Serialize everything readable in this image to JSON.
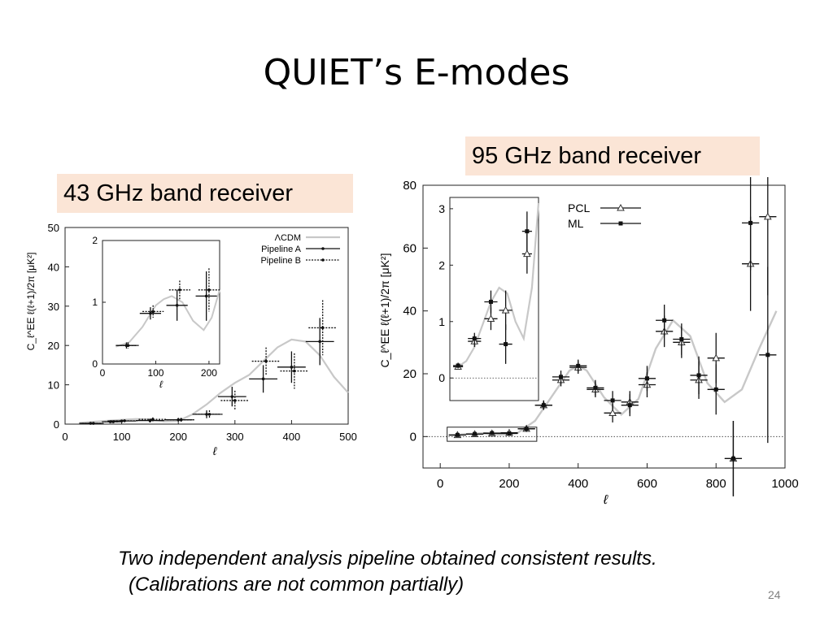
{
  "slide": {
    "title": "QUIET’s E-modes",
    "label_43": "43 GHz band receiver",
    "label_95": "95 GHz band receiver",
    "caption_line1": "Two independent analysis pipeline obtained consistent results.",
    "caption_line2": "(Calibrations are not common partially)",
    "page_number": "24"
  },
  "chart_data": [
    {
      "type": "scatter",
      "ylabel": "C_ℓ^EE ℓ(ℓ+1)/2π [μK²]",
      "xlabel": "ℓ",
      "xlim": [
        0,
        500
      ],
      "ylim": [
        0,
        50
      ],
      "xticks": [
        0,
        100,
        200,
        300,
        400,
        500
      ],
      "yticks": [
        0,
        10,
        20,
        30,
        40,
        50
      ],
      "legend_position": "top-right",
      "legend": [
        "ΛCDM",
        "Pipeline A",
        "Pipeline B"
      ],
      "theory": {
        "name": "ΛCDM",
        "color": "#c8c8c8",
        "x": [
          25,
          50,
          75,
          100,
          125,
          150,
          175,
          200,
          225,
          250,
          275,
          300,
          325,
          350,
          375,
          400,
          425,
          450,
          475,
          500
        ],
        "y": [
          0.3,
          0.6,
          0.85,
          1.1,
          1.3,
          1.2,
          0.7,
          0.8,
          2.5,
          5.0,
          8.0,
          10.5,
          12.5,
          16.0,
          19.5,
          21.5,
          21.0,
          17.5,
          12.0,
          8.0
        ]
      },
      "series": [
        {
          "name": "Pipeline A",
          "x": [
            45,
            80,
            100,
            150,
            200,
            250,
            295,
            350,
            400,
            450
          ],
          "y": [
            0.2,
            0.6,
            0.8,
            0.9,
            1.1,
            2.5,
            7.0,
            11.5,
            14.5,
            21.0
          ],
          "yerr": [
            0.1,
            0.2,
            0.3,
            0.5,
            0.5,
            1.0,
            2.5,
            3.5,
            4.0,
            6.0
          ],
          "xerr": [
            20,
            15,
            25,
            25,
            25,
            25,
            25,
            25,
            25,
            25
          ]
        },
        {
          "name": "Pipeline B",
          "x": [
            50,
            85,
            105,
            155,
            205,
            255,
            300,
            355,
            405,
            455
          ],
          "y": [
            0.2,
            0.6,
            0.85,
            1.2,
            1.1,
            2.5,
            6.0,
            16.0,
            13.5,
            24.5
          ],
          "yerr": [
            0.1,
            0.2,
            0.3,
            0.5,
            0.5,
            1.0,
            2.5,
            3.5,
            4.5,
            7.0
          ],
          "xerr": [
            20,
            15,
            25,
            25,
            25,
            25,
            25,
            25,
            25,
            25
          ]
        }
      ],
      "inset": {
        "xlim": [
          0,
          220
        ],
        "ylim": [
          0,
          2
        ],
        "xticks": [
          0,
          100,
          200
        ],
        "yticks": [
          0,
          1,
          2
        ],
        "xlabel": "ℓ",
        "theory": {
          "x": [
            25,
            50,
            75,
            100,
            115,
            130,
            150,
            170,
            190,
            205,
            220
          ],
          "y": [
            0.28,
            0.35,
            0.6,
            0.95,
            1.05,
            1.1,
            1.0,
            0.7,
            0.55,
            0.75,
            1.2
          ]
        },
        "series": [
          {
            "name": "Pipeline A",
            "x": [
              45,
              90,
              140,
              195
            ],
            "y": [
              0.3,
              0.82,
              0.95,
              1.1
            ],
            "yerr": [
              0.05,
              0.1,
              0.25,
              0.4
            ],
            "xerr": [
              20,
              20,
              20,
              20
            ]
          },
          {
            "name": "Pipeline B",
            "x": [
              48,
              95,
              145,
              200
            ],
            "y": [
              0.3,
              0.85,
              1.2,
              1.2
            ],
            "yerr": [
              0.05,
              0.1,
              0.15,
              0.35
            ],
            "xerr": [
              20,
              20,
              20,
              20
            ]
          }
        ]
      }
    },
    {
      "type": "scatter",
      "ylabel": "C_ℓ^EE ℓ(ℓ+1)/2π [μK²]",
      "xlabel": "ℓ",
      "xlim": [
        -50,
        1000
      ],
      "ylim": [
        -10,
        80
      ],
      "xticks": [
        0,
        200,
        400,
        600,
        800,
        1000
      ],
      "yticks": [
        0,
        20,
        40,
        60,
        80
      ],
      "legend_position": "top-center",
      "legend": [
        "PCL",
        "ML"
      ],
      "theory": {
        "color": "#c8c8c8",
        "x": [
          25,
          75,
          125,
          175,
          225,
          275,
          325,
          375,
          400,
          425,
          475,
          525,
          575,
          625,
          675,
          725,
          775,
          825,
          875,
          925,
          975
        ],
        "y": [
          0.3,
          0.8,
          1.1,
          0.6,
          1.2,
          5.0,
          13.0,
          21.0,
          22.5,
          21.0,
          12.5,
          7.0,
          12.0,
          28.0,
          37.0,
          32.0,
          17.0,
          11.0,
          15.0,
          28.0,
          40.0
        ]
      },
      "series": [
        {
          "name": "PCL",
          "x": [
            50,
            100,
            150,
            200,
            250,
            300,
            350,
            400,
            450,
            500,
            550,
            600,
            650,
            700,
            750,
            800,
            850,
            900,
            950
          ],
          "y": [
            0.5,
            0.8,
            1.0,
            1.2,
            2.5,
            10.0,
            18.0,
            22.0,
            15.0,
            7.5,
            11.0,
            16.5,
            33.5,
            30.0,
            18.0,
            25.0,
            -7.0,
            55.0,
            70.0
          ],
          "yerr": [
            0.3,
            0.3,
            0.5,
            0.6,
            1.0,
            1.5,
            2.0,
            2.0,
            2.5,
            3.0,
            3.5,
            4.0,
            5.0,
            5.0,
            6.0,
            8.0,
            12.0,
            15.0,
            25.0
          ],
          "xerr": [
            25,
            25,
            25,
            25,
            25,
            25,
            25,
            25,
            25,
            25,
            25,
            25,
            25,
            25,
            25,
            25,
            25,
            25,
            25
          ]
        },
        {
          "name": "ML",
          "x": [
            50,
            100,
            150,
            200,
            250,
            300,
            350,
            400,
            450,
            500,
            550,
            600,
            650,
            700,
            750,
            800,
            850,
            900,
            950
          ],
          "y": [
            0.5,
            0.8,
            1.1,
            1.0,
            2.5,
            10.0,
            19.0,
            22.5,
            15.5,
            11.5,
            10.0,
            18.5,
            37.0,
            31.0,
            19.5,
            15.0,
            -7.0,
            68.0,
            26.0
          ],
          "yerr": [
            0.3,
            0.3,
            0.5,
            0.6,
            1.0,
            1.5,
            2.0,
            2.0,
            2.5,
            3.0,
            3.5,
            4.0,
            5.0,
            5.0,
            6.0,
            8.0,
            12.0,
            15.0,
            28.0
          ],
          "xerr": [
            25,
            25,
            25,
            25,
            25,
            25,
            25,
            25,
            25,
            25,
            25,
            25,
            25,
            25,
            25,
            25,
            25,
            25,
            25
          ]
        }
      ],
      "inset": {
        "xlim": [
          0,
          270
        ],
        "ylim": [
          -0.4,
          3.2
        ],
        "yticks": [
          0,
          1,
          2,
          3
        ],
        "theory": {
          "x": [
            25,
            50,
            75,
            100,
            125,
            150,
            175,
            200,
            225,
            250,
            270
          ],
          "y": [
            0.2,
            0.3,
            0.55,
            0.95,
            1.35,
            1.6,
            1.5,
            1.0,
            0.7,
            1.6,
            3.1
          ]
        },
        "series": [
          {
            "name": "PCL",
            "x": [
              25,
              75,
              125,
              170,
              235
            ],
            "y": [
              0.2,
              0.65,
              1.05,
              1.2,
              2.2
            ],
            "yerr": [
              0.05,
              0.1,
              0.2,
              0.35,
              0.35
            ],
            "xerr": [
              15,
              20,
              20,
              20,
              15
            ]
          },
          {
            "name": "ML",
            "x": [
              25,
              75,
              125,
              170,
              235
            ],
            "y": [
              0.22,
              0.7,
              1.35,
              0.6,
              2.6
            ],
            "yerr": [
              0.05,
              0.1,
              0.2,
              0.35,
              0.35
            ],
            "xerr": [
              15,
              20,
              20,
              20,
              15
            ]
          }
        ]
      }
    }
  ]
}
